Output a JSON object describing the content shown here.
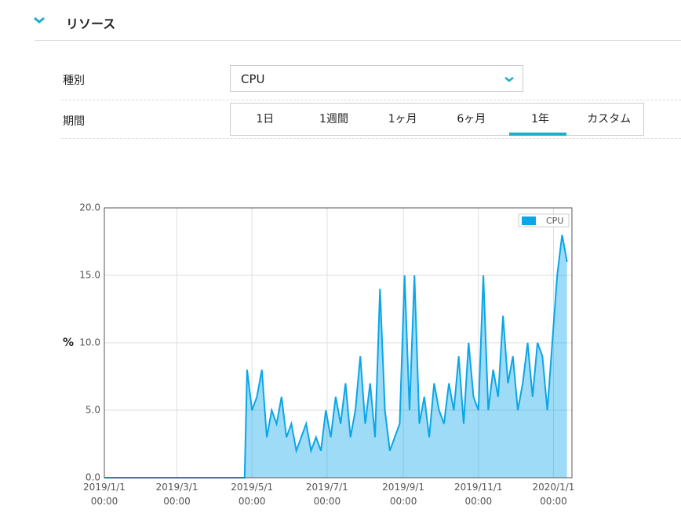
{
  "header": {
    "title": "リソース"
  },
  "form": {
    "type_label": "種別",
    "type_value": "CPU",
    "period_label": "期間",
    "period_tabs": [
      "1日",
      "1週間",
      "1ヶ月",
      "6ヶ月",
      "1年",
      "カスタム"
    ],
    "active_tab": 4
  },
  "chart_data": {
    "type": "area",
    "y_label": "%",
    "legend": "upper right",
    "grid": true,
    "xlim": [
      "2019-01-01",
      "2020-01-16"
    ],
    "xticks": [
      {
        "value": "2019-01-01",
        "label": [
          "2019/1/1",
          "00:00"
        ]
      },
      {
        "value": "2019-03-01",
        "label": [
          "2019/3/1",
          "00:00"
        ]
      },
      {
        "value": "2019-05-01",
        "label": [
          "2019/5/1",
          "00:00"
        ]
      },
      {
        "value": "2019-07-01",
        "label": [
          "2019/7/1",
          "00:00"
        ]
      },
      {
        "value": "2019-09-01",
        "label": [
          "2019/9/1",
          "00:00"
        ]
      },
      {
        "value": "2019-11-01",
        "label": [
          "2019/11/1",
          "00:00"
        ]
      },
      {
        "value": "2020-01-01",
        "label": [
          "2020/1/1",
          "00:00"
        ]
      }
    ],
    "ylim": [
      0,
      20
    ],
    "yticks": [
      {
        "value": 0,
        "label": "0.0"
      },
      {
        "value": 5,
        "label": "5.0"
      },
      {
        "value": 10,
        "label": "10.0"
      },
      {
        "value": 15,
        "label": "15.0"
      },
      {
        "value": 20,
        "label": "20.0"
      }
    ],
    "x": [
      "2019-01-01",
      "2019-04-25",
      "2019-04-27",
      "2019-05-01",
      "2019-05-05",
      "2019-05-09",
      "2019-05-13",
      "2019-05-17",
      "2019-05-21",
      "2019-05-25",
      "2019-05-29",
      "2019-06-02",
      "2019-06-06",
      "2019-06-10",
      "2019-06-14",
      "2019-06-18",
      "2019-06-22",
      "2019-06-26",
      "2019-06-30",
      "2019-07-04",
      "2019-07-08",
      "2019-07-12",
      "2019-07-16",
      "2019-07-20",
      "2019-07-24",
      "2019-07-28",
      "2019-08-01",
      "2019-08-05",
      "2019-08-09",
      "2019-08-13",
      "2019-08-17",
      "2019-08-21",
      "2019-08-25",
      "2019-08-29",
      "2019-09-02",
      "2019-09-06",
      "2019-09-10",
      "2019-09-14",
      "2019-09-18",
      "2019-09-22",
      "2019-09-26",
      "2019-09-30",
      "2019-10-04",
      "2019-10-08",
      "2019-10-12",
      "2019-10-16",
      "2019-10-20",
      "2019-10-24",
      "2019-10-28",
      "2019-11-01",
      "2019-11-05",
      "2019-11-09",
      "2019-11-13",
      "2019-11-17",
      "2019-11-21",
      "2019-11-25",
      "2019-11-29",
      "2019-12-03",
      "2019-12-07",
      "2019-12-11",
      "2019-12-15",
      "2019-12-19",
      "2019-12-23",
      "2019-12-27",
      "2019-12-31",
      "2020-01-04",
      "2020-01-08",
      "2020-01-12"
    ],
    "series": [
      {
        "name": "CPU",
        "color": "#0aa6e8",
        "values": [
          0,
          0,
          8,
          5,
          6,
          8,
          3,
          5,
          4,
          6,
          3,
          4,
          2,
          3,
          4,
          2,
          3,
          2,
          5,
          3,
          6,
          4,
          7,
          3,
          5,
          9,
          4,
          7,
          3,
          14,
          5,
          2,
          3,
          4,
          15,
          5,
          15,
          4,
          6,
          3,
          7,
          5,
          4,
          7,
          5,
          9,
          4,
          10,
          6,
          5,
          15,
          5,
          8,
          6,
          12,
          7,
          9,
          5,
          7,
          10,
          6,
          10,
          9,
          5,
          10,
          15,
          18,
          16
        ]
      }
    ]
  }
}
